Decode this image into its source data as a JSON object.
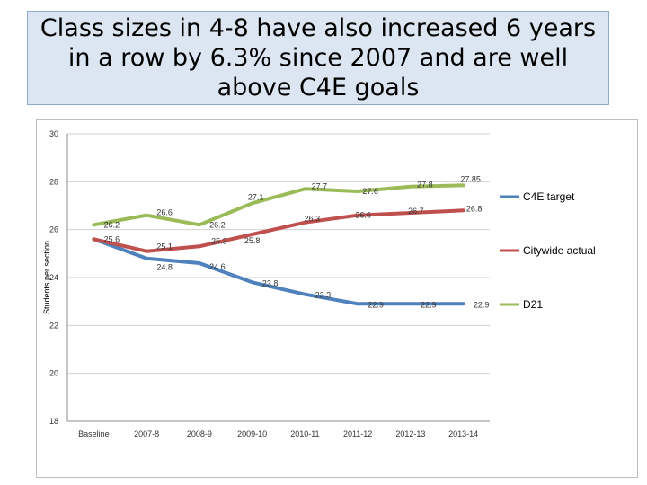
{
  "slide": {
    "title": "Class sizes in 4-8 have also increased 6 years in a row by 6.3% since 2007 and are well above C4E goals"
  },
  "chart_data": {
    "type": "line",
    "title": "",
    "xlabel": "",
    "ylabel": "Students per section",
    "ylim": [
      18,
      30
    ],
    "yticks": [
      18,
      20,
      22,
      24,
      26,
      28,
      30
    ],
    "categories": [
      "Baseline",
      "2007-8",
      "2008-9",
      "2009-10",
      "2010-11",
      "2011-12",
      "2012-13",
      "2013-14"
    ],
    "legend_position": "right",
    "series": [
      {
        "name": "C4E target",
        "color": "#4f81bd",
        "values": [
          25.6,
          24.8,
          24.6,
          23.8,
          23.3,
          22.9,
          22.9,
          22.9
        ],
        "labels": [
          "25.6",
          "24.8",
          "24.6",
          "23.8",
          "23.3",
          "22.9",
          "22.9",
          "22.9"
        ]
      },
      {
        "name": "Citywide actual",
        "color": "#c0504d",
        "values": [
          25.6,
          25.1,
          25.3,
          25.8,
          26.3,
          26.6,
          26.7,
          26.8
        ],
        "labels": [
          "",
          "25.1",
          "25.3",
          "25.8",
          "26.3",
          "26.6",
          "26.7",
          "26.8"
        ]
      },
      {
        "name": "D21",
        "color": "#9bbb59",
        "values": [
          26.2,
          26.6,
          26.2,
          27.1,
          27.7,
          27.6,
          27.8,
          27.85
        ],
        "labels": [
          "26.2",
          "26.6",
          "26.2",
          "27.1",
          "27.7",
          "27.6",
          "27.8",
          "27.85"
        ]
      }
    ]
  }
}
